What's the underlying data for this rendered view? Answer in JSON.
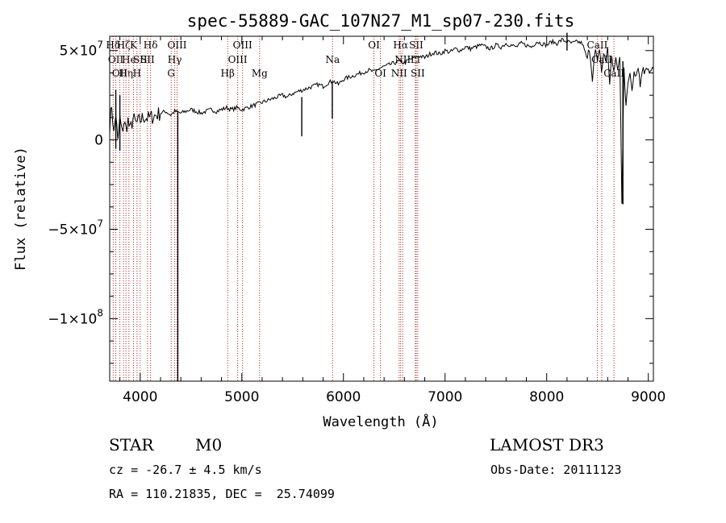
{
  "chart_data": {
    "type": "line",
    "title": "spec-55889-GAC_107N27_M1_sp07-230.fits",
    "xlabel": "Wavelength (Å)",
    "ylabel": "Flux (relative)",
    "xlim": [
      3700,
      9050
    ],
    "ylim": [
      -135000000,
      58000000
    ],
    "x_ticks": [
      4000,
      5000,
      6000,
      7000,
      8000,
      9000
    ],
    "x_tick_labels": [
      "4000",
      "5000",
      "6000",
      "7000",
      "8000",
      "9000"
    ],
    "y_ticks": [
      -100000000,
      -50000000,
      0,
      50000000
    ],
    "y_tick_labels": [
      {
        "base": "−1×10",
        "exp": "8"
      },
      {
        "base": "−5×10",
        "exp": "7"
      },
      {
        "base": "0",
        "exp": ""
      },
      {
        "base": "5×10",
        "exp": "7"
      }
    ],
    "series": [
      {
        "name": "spectrum",
        "x": [
          3700,
          3720,
          3740,
          3760,
          3780,
          3800,
          3820,
          3840,
          3860,
          3880,
          3900,
          3930,
          3960,
          4000,
          4040,
          4080,
          4120,
          4160,
          4200,
          4250,
          4300,
          4340,
          4400,
          4450,
          4500,
          4550,
          4600,
          4650,
          4700,
          4750,
          4800,
          4850,
          4900,
          4950,
          5000,
          5050,
          5100,
          5150,
          5200,
          5250,
          5300,
          5350,
          5400,
          5450,
          5500,
          5550,
          5600,
          5650,
          5700,
          5750,
          5800,
          5850,
          5900,
          5950,
          6000,
          6050,
          6100,
          6150,
          6200,
          6250,
          6300,
          6350,
          6400,
          6450,
          6500,
          6550,
          6600,
          6650,
          6700,
          6750,
          6800,
          6850,
          6900,
          6950,
          7000,
          7050,
          7100,
          7150,
          7200,
          7250,
          7300,
          7350,
          7400,
          7450,
          7500,
          7550,
          7600,
          7650,
          7700,
          7750,
          7800,
          7850,
          7900,
          7950,
          8000,
          8050,
          8100,
          8150,
          8200,
          8250,
          8300,
          8350,
          8400,
          8420,
          8450,
          8480,
          8500,
          8520,
          8540,
          8560,
          8580,
          8600,
          8620,
          8640,
          8660,
          8680,
          8700,
          8720,
          8740,
          8760,
          8780,
          8800,
          8820,
          8840,
          8860,
          8880,
          8900,
          8920,
          8940,
          8960,
          8980,
          9000,
          9020,
          9050
        ],
        "y": [
          8000000,
          20000000,
          3000000,
          15000000,
          -2000000,
          12000000,
          4000000,
          10000000,
          6000000,
          11000000,
          5000000,
          12000000,
          9000000,
          11000000,
          13000000,
          12000000,
          13000000,
          14000000,
          15000000,
          16000000,
          14000000,
          16000000,
          15000000,
          16000000,
          17000000,
          16000000,
          15000000,
          16000000,
          17000000,
          16000000,
          17000000,
          18000000,
          17000000,
          18000000,
          17000000,
          18000000,
          19000000,
          20000000,
          21000000,
          22000000,
          23000000,
          24000000,
          25000000,
          24000000,
          26000000,
          27000000,
          28000000,
          29000000,
          30000000,
          31000000,
          30000000,
          32000000,
          33000000,
          31000000,
          34000000,
          35000000,
          36000000,
          37000000,
          38000000,
          39000000,
          38000000,
          40000000,
          41000000,
          42000000,
          43000000,
          44000000,
          43000000,
          45000000,
          46000000,
          47000000,
          46000000,
          48000000,
          49000000,
          48000000,
          50000000,
          49000000,
          51000000,
          50000000,
          52000000,
          51000000,
          52000000,
          53000000,
          52000000,
          51000000,
          53000000,
          52000000,
          54000000,
          53000000,
          52000000,
          54000000,
          53000000,
          52000000,
          55000000,
          54000000,
          53000000,
          55000000,
          54000000,
          56000000,
          55000000,
          54000000,
          55000000,
          54000000,
          45000000,
          52000000,
          35000000,
          50000000,
          42000000,
          52000000,
          38000000,
          48000000,
          44000000,
          52000000,
          30000000,
          48000000,
          38000000,
          44000000,
          40000000,
          46000000,
          -36000000,
          42000000,
          20000000,
          30000000,
          38000000,
          28000000,
          40000000,
          36000000,
          42000000,
          30000000,
          40000000,
          38000000,
          42000000,
          40000000,
          38000000,
          40000000
        ]
      }
    ],
    "spikes": [
      {
        "x": 3760,
        "y_low": -5000000,
        "y_high": 28000000
      },
      {
        "x": 3800,
        "y_low": -6000000,
        "y_high": 25000000
      },
      {
        "x": 4370,
        "y_low": -135000000,
        "y_high": 16000000
      },
      {
        "x": 5590,
        "y_low": 2000000,
        "y_high": 24000000
      },
      {
        "x": 5890,
        "y_low": 12000000,
        "y_high": 33000000
      },
      {
        "x": 8200,
        "y_low": 50000000,
        "y_high": 60000000
      },
      {
        "x": 8750,
        "y_low": -36000000,
        "y_high": 44000000
      }
    ],
    "line_markers": [
      {
        "x": 3734,
        "row": 0,
        "label": "Hδ"
      },
      {
        "x": 3760,
        "row": 1,
        "label": "OII"
      },
      {
        "x": 3800,
        "row": 2,
        "label": "OII"
      },
      {
        "x": 3836,
        "row": 0,
        "label": "Hζ"
      },
      {
        "x": 3860,
        "row": 2,
        "label": "Hη"
      },
      {
        "x": 3889,
        "row": 1,
        "label": "He"
      },
      {
        "x": 3934,
        "row": 0,
        "label": "K"
      },
      {
        "x": 3969,
        "row": 2,
        "label": "H"
      },
      {
        "x": 4000,
        "row": 1,
        "label": "SII"
      },
      {
        "x": 4102,
        "row": 0,
        "label": "Hδ"
      },
      {
        "x": 4072,
        "row": 1,
        "label": "SII"
      },
      {
        "x": 4305,
        "row": 2,
        "label": "G"
      },
      {
        "x": 4340,
        "row": 1,
        "label": "Hγ"
      },
      {
        "x": 4363,
        "row": 0,
        "label": "OIII"
      },
      {
        "x": 4861,
        "row": 2,
        "label": "Hβ"
      },
      {
        "x": 4959,
        "row": 1,
        "label": "OIII"
      },
      {
        "x": 5007,
        "row": 0,
        "label": "OIII"
      },
      {
        "x": 5175,
        "row": 2,
        "label": "Mg"
      },
      {
        "x": 5893,
        "row": 1,
        "label": "Na"
      },
      {
        "x": 6300,
        "row": 0,
        "label": "OI"
      },
      {
        "x": 6364,
        "row": 2,
        "label": "OI"
      },
      {
        "x": 6548,
        "row": 2,
        "label": "NII"
      },
      {
        "x": 6563,
        "row": 0,
        "label": "Hα"
      },
      {
        "x": 6583,
        "row": 1,
        "label": "NII"
      },
      {
        "x": 6707,
        "row": 1,
        "label": "Li"
      },
      {
        "x": 6716,
        "row": 0,
        "label": "SII"
      },
      {
        "x": 6731,
        "row": 2,
        "label": "SII"
      },
      {
        "x": 8498,
        "row": 0,
        "label": "CaII"
      },
      {
        "x": 8542,
        "row": 1,
        "label": "CaII"
      },
      {
        "x": 8662,
        "row": 2,
        "label": "CaII"
      }
    ]
  },
  "info": {
    "class": "STAR",
    "subclass": "M0",
    "survey": "LAMOST DR3",
    "cz": "cz = -26.7 ± 4.5 km/s",
    "obs_date": "Obs-Date: 20111123",
    "coords": "RA = 110.21835, DEC =  25.74099"
  },
  "colors": {
    "axis": "#000000",
    "spectrum": "#000000",
    "marker": "#b22222"
  }
}
